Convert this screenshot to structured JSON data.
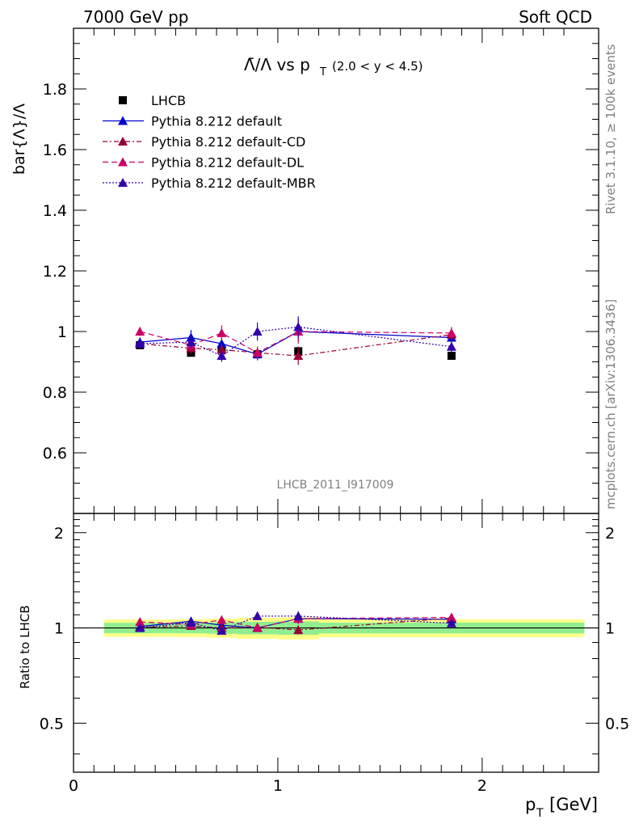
{
  "header": {
    "left": "7000 GeV pp",
    "right": "Soft QCD"
  },
  "side": {
    "rivet": "Rivet 3.1.10, ≥ 100k events",
    "mcplots": "mcplots.cern.ch [arXiv:1306.3436]"
  },
  "colors": {
    "data": "#000000",
    "default": "#0000cc",
    "cd": "#990033",
    "dl": "#cc0066",
    "mbr": "#3300aa",
    "band_inner": "#90ee90",
    "band_outer": "#ffff88"
  },
  "chart_data": {
    "type": "line",
    "title_main": "Λ̄/Λ vs p",
    "title_sub": "T",
    "title_range": "(2.0 < y < 4.5)",
    "ylabel": "bar{Λ}/Λ",
    "xlabel": "p",
    "xlabel_sub": "T",
    "xlabel_unit": "[GeV]",
    "ratio_ylabel": "Ratio to LHCB",
    "watermark": "LHCB_2011_I917009",
    "xlim": [
      0,
      2.57
    ],
    "ylim": [
      0.4,
      2.0
    ],
    "ratio_ylim": [
      0.35,
      2.3
    ],
    "x_ticks": [
      "0",
      "1",
      "2"
    ],
    "y_ticks": [
      "0.6",
      "0.8",
      "1",
      "1.2",
      "1.4",
      "1.6",
      "1.8"
    ],
    "ratio_ticks": [
      "0.5",
      "1",
      "2"
    ],
    "legend_position": "top-left",
    "x": [
      0.325,
      0.575,
      0.725,
      0.9,
      1.1,
      1.85
    ],
    "data_band_edges": [
      0.15,
      0.5,
      0.65,
      0.8,
      1.0,
      1.2,
      2.5
    ],
    "series": [
      {
        "name": "LHCB",
        "style": "data",
        "values": [
          0.955,
          0.93,
          0.94,
          0.925,
          0.935,
          0.92
        ],
        "errors": [
          0.012,
          0.012,
          0.013,
          0.014,
          0.015,
          0.012
        ]
      },
      {
        "name": "Pythia 8.212 default",
        "style": "default",
        "values": [
          0.965,
          0.98,
          0.96,
          0.925,
          1.0,
          0.98
        ],
        "errors": [
          0.015,
          0.025,
          0.02,
          0.02,
          0.03,
          0.02
        ],
        "ratio": [
          1.01,
          1.05,
          1.02,
          1.0,
          1.07,
          1.065
        ]
      },
      {
        "name": "Pythia 8.212 default-CD",
        "style": "cd",
        "values": [
          0.96,
          0.945,
          0.94,
          0.93,
          0.92,
          0.99
        ],
        "errors": [
          0.015,
          0.02,
          0.02,
          0.02,
          0.03,
          0.02
        ],
        "ratio": [
          1.005,
          1.015,
          1.0,
          1.005,
          0.985,
          1.075
        ]
      },
      {
        "name": "Pythia 8.212 default-DL",
        "style": "dl",
        "values": [
          1.0,
          0.955,
          0.995,
          0.93,
          1.0,
          0.995
        ],
        "errors": [
          0.015,
          0.02,
          0.025,
          0.02,
          0.04,
          0.02
        ],
        "ratio": [
          1.045,
          1.025,
          1.06,
          1.0,
          1.07,
          1.08
        ]
      },
      {
        "name": "Pythia 8.212 default-MBR",
        "style": "mbr",
        "values": [
          0.96,
          0.965,
          0.92,
          1.0,
          1.015,
          0.95
        ],
        "errors": [
          0.015,
          0.02,
          0.02,
          0.03,
          0.035,
          0.02
        ],
        "ratio": [
          1.0,
          1.04,
          0.98,
          1.09,
          1.09,
          1.035
        ]
      }
    ]
  }
}
